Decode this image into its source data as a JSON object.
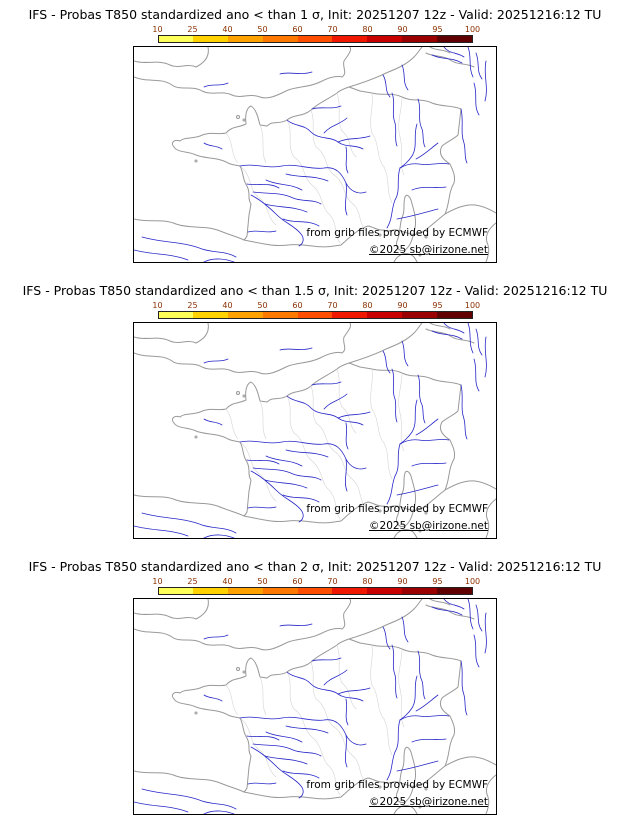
{
  "panels": [
    {
      "title": "IFS - Probas T850  standardized ano < than 1 σ, Init: 20251207 12z - Valid: 20251216:12 TU",
      "attribution": "from grib files provided by ECMWF",
      "copyright": "©2025 sb@irizone.net"
    },
    {
      "title": "IFS - Probas T850  standardized ano < than 1.5 σ, Init: 20251207 12z - Valid: 20251216:12 TU",
      "attribution": "from grib files provided by ECMWF",
      "copyright": "©2025 sb@irizone.net"
    },
    {
      "title": "IFS - Probas T850  standardized ano < than 2 σ, Init: 20251207 12z - Valid: 20251216:12 TU",
      "attribution": "from grib files provided by ECMWF",
      "copyright": "©2025 sb@irizone.net"
    }
  ],
  "colorbar": {
    "tick_labels": [
      "10",
      "25",
      "40",
      "50",
      "60",
      "70",
      "80",
      "90",
      "95",
      "100"
    ],
    "segment_colors": [
      "#FFFF5A",
      "#FFD200",
      "#FFA200",
      "#FF7800",
      "#FF4E00",
      "#F01800",
      "#C80000",
      "#9B0000",
      "#600000"
    ],
    "tick_color": "#8B3000",
    "border_color": "#222222"
  },
  "map": {
    "coast_color": "#999999",
    "admin_color": "#d4d4d4",
    "river_color": "#2626c8",
    "probability_shading": "none (all values below lowest class)"
  }
}
